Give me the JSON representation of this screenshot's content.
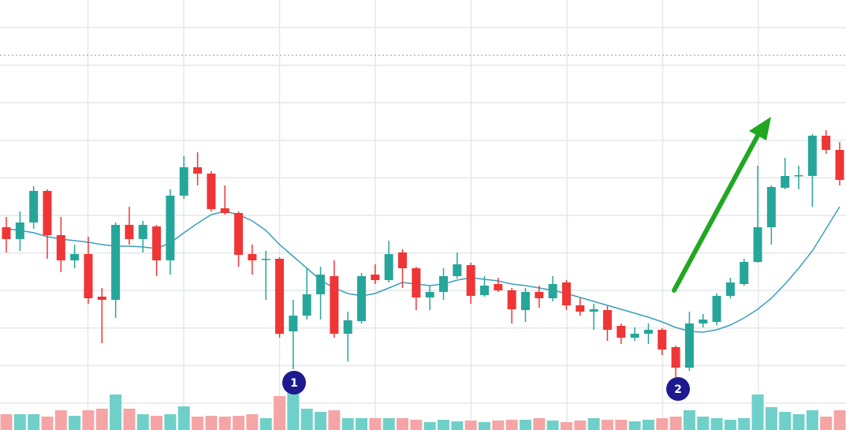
{
  "chart_data": {
    "type": "candlestick",
    "open": [
      257,
      242,
      263,
      303,
      247,
      215,
      223,
      169,
      165,
      260,
      242,
      258,
      215,
      297,
      333,
      325,
      281,
      275,
      223,
      217,
      217,
      125,
      145,
      172,
      195,
      122,
      138,
      197,
      190,
      225,
      205,
      168,
      175,
      195,
      209,
      171,
      185,
      177,
      152,
      175,
      167,
      187,
      158,
      150,
      152,
      132,
      117,
      122,
      127,
      105,
      79,
      135,
      137,
      170,
      185,
      213,
      257,
      307,
      322,
      322,
      373,
      355
    ],
    "high": [
      270,
      277,
      309,
      305,
      270,
      235,
      245,
      180,
      263,
      283,
      265,
      260,
      305,
      347,
      352,
      328,
      310,
      277,
      235,
      227,
      219,
      165,
      205,
      207,
      215,
      150,
      199,
      210,
      240,
      229,
      207,
      183,
      205,
      225,
      212,
      195,
      193,
      180,
      180,
      183,
      195,
      190,
      167,
      160,
      157,
      135,
      130,
      135,
      129,
      107,
      150,
      147,
      173,
      193,
      217,
      335,
      310,
      345,
      335,
      375,
      380,
      365
    ],
    "low": [
      225,
      227,
      255,
      217,
      200,
      205,
      160,
      110,
      142,
      235,
      225,
      195,
      197,
      293,
      310,
      277,
      273,
      207,
      197,
      165,
      117,
      77,
      140,
      140,
      117,
      87,
      135,
      185,
      187,
      180,
      152,
      152,
      165,
      192,
      160,
      169,
      175,
      135,
      137,
      155,
      163,
      152,
      145,
      127,
      113,
      109,
      113,
      109,
      95,
      67,
      75,
      130,
      133,
      167,
      183,
      212,
      235,
      305,
      305,
      283,
      350,
      310
    ],
    "close": [
      242,
      263,
      303,
      247,
      215,
      223,
      167,
      165,
      260,
      242,
      260,
      215,
      297,
      333,
      325,
      280,
      275,
      222,
      215,
      217,
      122,
      145,
      172,
      197,
      122,
      139,
      195,
      190,
      223,
      205,
      168,
      175,
      195,
      210,
      170,
      183,
      177,
      153,
      175,
      167,
      185,
      158,
      150,
      153,
      127,
      117,
      122,
      127,
      102,
      79,
      135,
      140,
      170,
      187,
      213,
      257,
      308,
      322,
      323,
      373,
      355,
      317
    ],
    "ma": [
      255,
      253,
      250,
      245,
      242,
      240,
      238,
      235,
      233,
      233,
      232,
      230,
      237,
      250,
      262,
      273,
      277,
      273,
      265,
      253,
      235,
      220,
      205,
      190,
      180,
      173,
      170,
      173,
      180,
      187,
      185,
      183,
      185,
      190,
      193,
      191,
      189,
      185,
      183,
      180,
      177,
      173,
      168,
      163,
      158,
      153,
      148,
      143,
      137,
      130,
      125,
      124,
      127,
      133,
      142,
      153,
      167,
      185,
      205,
      227,
      255,
      283
    ],
    "volume": [
      20,
      20,
      20,
      17,
      25,
      18,
      25,
      27,
      45,
      27,
      20,
      18,
      20,
      30,
      17,
      18,
      17,
      18,
      20,
      15,
      43,
      50,
      27,
      23,
      25,
      15,
      15,
      15,
      15,
      15,
      13,
      10,
      13,
      11,
      12,
      10,
      12,
      13,
      13,
      15,
      12,
      10,
      12,
      15,
      13,
      13,
      11,
      13,
      15,
      17,
      25,
      17,
      15,
      13,
      15,
      45,
      29,
      23,
      20,
      25,
      17,
      25
    ],
    "ylim": [
      0,
      545
    ],
    "y2lim": [
      0,
      545
    ],
    "up_color": "#26a69a",
    "down_color": "#ef3535",
    "up_volume_color": "#6fd0c9",
    "down_volume_color": "#f5a5a5",
    "ma_color": "#3a9fbd",
    "grid": true,
    "annotations": [
      "1",
      "2"
    ]
  }
}
